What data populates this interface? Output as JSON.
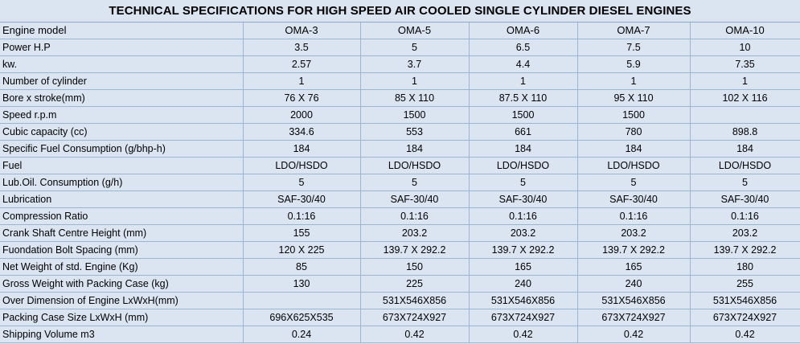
{
  "title": "TECHNICAL SPECIFICATIONS FOR HIGH SPEED AIR COOLED SINGLE CYLINDER DIESEL ENGINES",
  "header": {
    "label": "Engine model",
    "models": [
      "OMA-3",
      "OMA-5",
      "OMA-6",
      "OMA-7",
      "OMA-10"
    ]
  },
  "rows": [
    {
      "label": "Power H.P",
      "values": [
        "3.5",
        "5",
        "6.5",
        "7.5",
        "10"
      ]
    },
    {
      "label": "kw.",
      "values": [
        "2.57",
        "3.7",
        "4.4",
        "5.9",
        "7.35"
      ]
    },
    {
      "label": "Number of cylinder",
      "values": [
        "1",
        "1",
        "1",
        "1",
        "1"
      ]
    },
    {
      "label": "Bore x stroke(mm)",
      "values": [
        "76 X 76",
        "85 X 110",
        "87.5 X 110",
        "95 X 110",
        "102 X 116"
      ]
    },
    {
      "label": "Speed r.p.m",
      "values": [
        "2000",
        "1500",
        "1500",
        "1500",
        ""
      ]
    },
    {
      "label": "Cubic capacity (cc)",
      "values": [
        "334.6",
        "553",
        "661",
        "780",
        "898.8"
      ]
    },
    {
      "label": "Specific Fuel Consumption (g/bhp-h)",
      "values": [
        "184",
        "184",
        "184",
        "184",
        "184"
      ]
    },
    {
      "label": "Fuel",
      "values": [
        "LDO/HSDO",
        "LDO/HSDO",
        "LDO/HSDO",
        "LDO/HSDO",
        "LDO/HSDO"
      ]
    },
    {
      "label": "Lub.Oil. Consumption (g/h)",
      "values": [
        "5",
        "5",
        "5",
        "5",
        "5"
      ]
    },
    {
      "label": "Lubrication",
      "values": [
        "SAF-30/40",
        "SAF-30/40",
        "SAF-30/40",
        "SAF-30/40",
        "SAF-30/40"
      ]
    },
    {
      "label": "Compression Ratio",
      "values": [
        "0.1:16",
        "0.1:16",
        "0.1:16",
        "0.1:16",
        "0.1:16"
      ]
    },
    {
      "label": "Crank Shaft Centre Height (mm)",
      "values": [
        "155",
        "203.2",
        "203.2",
        "203.2",
        "203.2"
      ]
    },
    {
      "label": "Fuondation Bolt Spacing (mm)",
      "values": [
        "120 X 225",
        "139.7 X 292.2",
        "139.7 X 292.2",
        "139.7 X 292.2",
        "139.7 X 292.2"
      ]
    },
    {
      "label": "Net Weight of std. Engine (Kg)",
      "values": [
        "85",
        "150",
        "165",
        "165",
        "180"
      ]
    },
    {
      "label": "Gross Weight with Packing Case (kg)",
      "values": [
        "130",
        "225",
        "240",
        "240",
        "255"
      ]
    },
    {
      "label": "Over Dimension of Engine LxWxH(mm)",
      "values": [
        "",
        "531X546X856",
        "531X546X856",
        "531X546X856",
        "531X546X856"
      ]
    },
    {
      "label": "Packing Case Size LxWxH (mm)",
      "values": [
        "696X625X535",
        "673X724X927",
        "673X724X927",
        "673X724X927",
        "673X724X927"
      ]
    },
    {
      "label": "Shipping Volume m3",
      "values": [
        "0.24",
        "0.42",
        "0.42",
        "0.42",
        "0.42"
      ]
    }
  ],
  "colors": {
    "background": "#dbe5f1",
    "grid": "#9bb5d2"
  }
}
